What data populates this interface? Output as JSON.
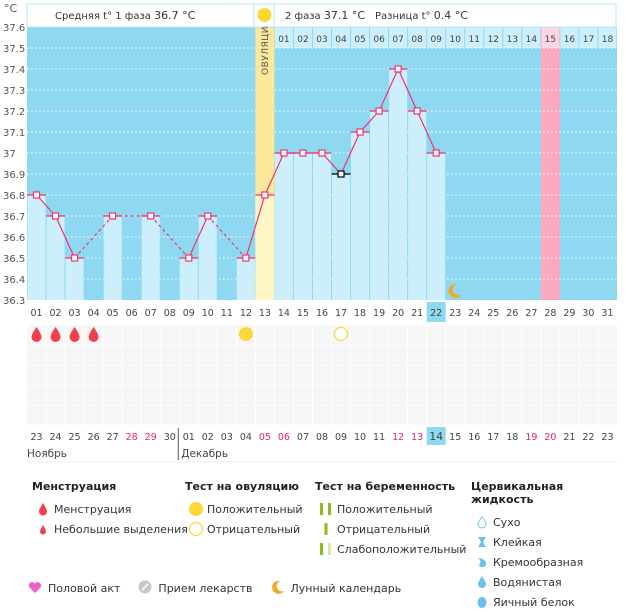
{
  "header": {
    "phase1_label": "Средняя t° 1 фаза",
    "phase1_value": "36.7 °C",
    "phase2_label": "2 фаза",
    "phase2_value": "37.1 °C",
    "diff_label": "Разница t°",
    "diff_value": "0.4 °C",
    "ovulation_label": "ОВУЛЯЦИЯ"
  },
  "chart_data": {
    "type": "bar",
    "title": "",
    "ylabel": "°C",
    "ylim": [
      36.3,
      37.6
    ],
    "yticks": [
      "37.6",
      "37.5",
      "37.4",
      "37.3",
      "37.2",
      "37.1",
      "37",
      "36.9",
      "36.8",
      "36.7",
      "36.6",
      "36.5",
      "36.4",
      "36.3"
    ],
    "categories": [
      "01",
      "02",
      "03",
      "04",
      "05",
      "06",
      "07",
      "08",
      "09",
      "10",
      "11",
      "12",
      "13",
      "14",
      "15",
      "16",
      "17",
      "18",
      "19",
      "20",
      "21",
      "22",
      "23",
      "24",
      "25",
      "26",
      "27",
      "28",
      "29",
      "30",
      "31"
    ],
    "values": [
      36.8,
      36.7,
      36.5,
      null,
      36.7,
      null,
      36.7,
      null,
      36.5,
      36.7,
      null,
      36.5,
      36.8,
      37.0,
      37.0,
      37.0,
      36.9,
      37.1,
      37.2,
      37.4,
      37.2,
      37.0,
      null,
      null,
      null,
      null,
      null,
      null,
      null,
      null,
      null
    ],
    "excluded_days": [
      "17"
    ],
    "ovulation_day": "13",
    "today_day": "22",
    "expected_period_day": "28",
    "moon_day": "23",
    "phase2_days": [
      "01",
      "02",
      "03",
      "04",
      "05",
      "06",
      "07",
      "08",
      "09",
      "10",
      "11",
      "12",
      "13",
      "14",
      "15",
      "16",
      "17",
      "18"
    ],
    "phase2_highlight": "15",
    "markers": {
      "menstruation": [
        "01",
        "02",
        "03",
        "04"
      ],
      "ovulation_test_positive": [
        "12"
      ],
      "ovulation_test_negative": [
        "17"
      ]
    },
    "dates": [
      "23",
      "24",
      "25",
      "26",
      "27",
      "28",
      "29",
      "30",
      "01",
      "02",
      "03",
      "04",
      "05",
      "06",
      "07",
      "08",
      "09",
      "10",
      "11",
      "12",
      "13",
      "14",
      "15",
      "16",
      "17",
      "18",
      "19",
      "20",
      "21",
      "22",
      "23"
    ],
    "weekend_dates": [
      5,
      6,
      12,
      13,
      19,
      20,
      26,
      27
    ],
    "today_date_index": 21,
    "months": [
      "Ноябрь",
      "Декабрь"
    ]
  },
  "colors": {
    "chart_bg": "#8fd8f2",
    "bar": "#cdeefb",
    "line": "#f0356f",
    "ovulation": "#fbe89a",
    "ovulation_low": "#fff6c8",
    "period": "#fba8c0",
    "today": "#8fd8f2",
    "weekend": "#e8265a"
  },
  "legend": {
    "menstruation": {
      "title": "Менструация",
      "items": [
        "Менструация",
        "Небольшие выделения"
      ]
    },
    "ovulation_test": {
      "title": "Тест на овуляцию",
      "items": [
        "Положительный",
        "Отрицательный"
      ]
    },
    "pregnancy_test": {
      "title": "Тест на беременность",
      "items": [
        "Положительный",
        "Отрицательный",
        "Слабоположительный"
      ]
    },
    "cervical_fluid": {
      "title": "Цервикальная жидкость",
      "items": [
        "Сухо",
        "Клейкая",
        "Кремообразная",
        "Водянистая",
        "Яичный белок"
      ]
    },
    "bottom": [
      "Половой акт",
      "Прием лекарств",
      "Лунный календарь"
    ]
  }
}
